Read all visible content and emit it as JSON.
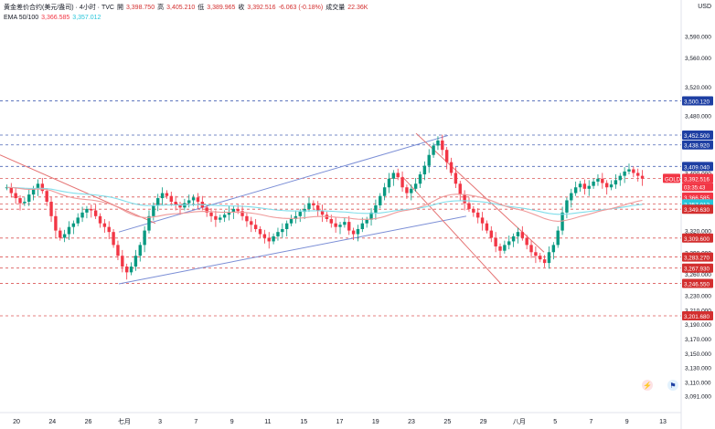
{
  "legend": {
    "symbol": "黄金差价合约(美元/盎司) · 4小时 · TVC",
    "open_label": "開",
    "open": "3,398.750",
    "high_label": "高",
    "high": "3,405.210",
    "low_label": "低",
    "low": "3,389.965",
    "close_label": "收",
    "close": "3,392.516",
    "change": "-6.063 (-0.18%)",
    "volume_label": "成交量",
    "volume": "22.36K",
    "ema_label": "EMA 50/100",
    "ema50_value": "3,366.585",
    "ema100_value": "3,357.012"
  },
  "currency": "USD",
  "colors": {
    "up": "#089981",
    "down": "#f23645",
    "ema50": "#ef9a9a",
    "ema100": "#80deea",
    "channel": "#7b8ed6",
    "blue_level": "#1e3fa3",
    "red_level": "#d32f2f"
  },
  "chart_data": {
    "type": "candlestick",
    "y_range": [
      3080,
      3635
    ],
    "y_ticks": [
      "3,590.000",
      "3,560.000",
      "3,520.000",
      "3,480.000",
      "3,440.000",
      "3,400.000",
      "3,360.000",
      "3,320.000",
      "3,290.000",
      "3,260.000",
      "3,230.000",
      "3,210.000",
      "3,190.000",
      "3,170.000",
      "3,150.000",
      "3,130.000",
      "3,110.000",
      "3,091.000"
    ],
    "x_labels": [
      "20",
      "24",
      "26",
      "七月",
      "3",
      "7",
      "9",
      "11",
      "15",
      "17",
      "19",
      "23",
      "25",
      "29",
      "八月",
      "5",
      "7",
      "9",
      "13"
    ],
    "price_badges": [
      {
        "label": "",
        "value": "3,500.120",
        "color": "#1e3fa3"
      },
      {
        "label": "",
        "value": "3,452.500",
        "color": "#1e3fa3"
      },
      {
        "label": "",
        "value": "3,438.920",
        "color": "#1e3fa3"
      },
      {
        "label": "",
        "value": "3,409.040",
        "color": "#1e3fa3"
      },
      {
        "label": "GOLD",
        "value": "3,392.516",
        "sub": "03:35:43",
        "color": "#f23645"
      },
      {
        "label": "",
        "value": "3,366.585",
        "color": "#f23645"
      },
      {
        "label": "",
        "value": "3,357.012",
        "color": "#26c6da"
      },
      {
        "label": "",
        "value": "3,349.630",
        "color": "#d32f2f"
      },
      {
        "label": "",
        "value": "3,309.600",
        "color": "#d32f2f"
      },
      {
        "label": "",
        "value": "3,283.270",
        "color": "#d32f2f"
      },
      {
        "label": "",
        "value": "3,267.930",
        "color": "#d32f2f"
      },
      {
        "label": "",
        "value": "3,246.550",
        "color": "#d32f2f"
      },
      {
        "label": "",
        "value": "3,201.680",
        "color": "#d32f2f"
      }
    ],
    "close_series": [
      3380,
      3372,
      3365,
      3358,
      3360,
      3370,
      3378,
      3385,
      3375,
      3360,
      3340,
      3320,
      3310,
      3315,
      3325,
      3330,
      3338,
      3345,
      3350,
      3348,
      3340,
      3330,
      3325,
      3318,
      3300,
      3285,
      3270,
      3262,
      3270,
      3285,
      3300,
      3320,
      3340,
      3355,
      3365,
      3372,
      3368,
      3360,
      3356,
      3352,
      3358,
      3362,
      3366,
      3360,
      3352,
      3345,
      3340,
      3335,
      3338,
      3342,
      3346,
      3350,
      3347,
      3340,
      3333,
      3328,
      3322,
      3315,
      3310,
      3305,
      3312,
      3318,
      3322,
      3330,
      3336,
      3340,
      3346,
      3350,
      3358,
      3355,
      3348,
      3342,
      3336,
      3330,
      3325,
      3328,
      3332,
      3320,
      3315,
      3322,
      3330,
      3335,
      3345,
      3355,
      3368,
      3380,
      3392,
      3400,
      3394,
      3380,
      3372,
      3378,
      3385,
      3398,
      3410,
      3425,
      3438,
      3445,
      3432,
      3415,
      3400,
      3385,
      3370,
      3358,
      3350,
      3345,
      3338,
      3330,
      3320,
      3310,
      3298,
      3292,
      3300,
      3305,
      3312,
      3318,
      3310,
      3300,
      3290,
      3285,
      3280,
      3275,
      3290,
      3300,
      3320,
      3345,
      3362,
      3372,
      3380,
      3385,
      3378,
      3382,
      3388,
      3392,
      3386,
      3380,
      3384,
      3390,
      3396,
      3402,
      3405,
      3400,
      3396,
      3392
    ]
  }
}
